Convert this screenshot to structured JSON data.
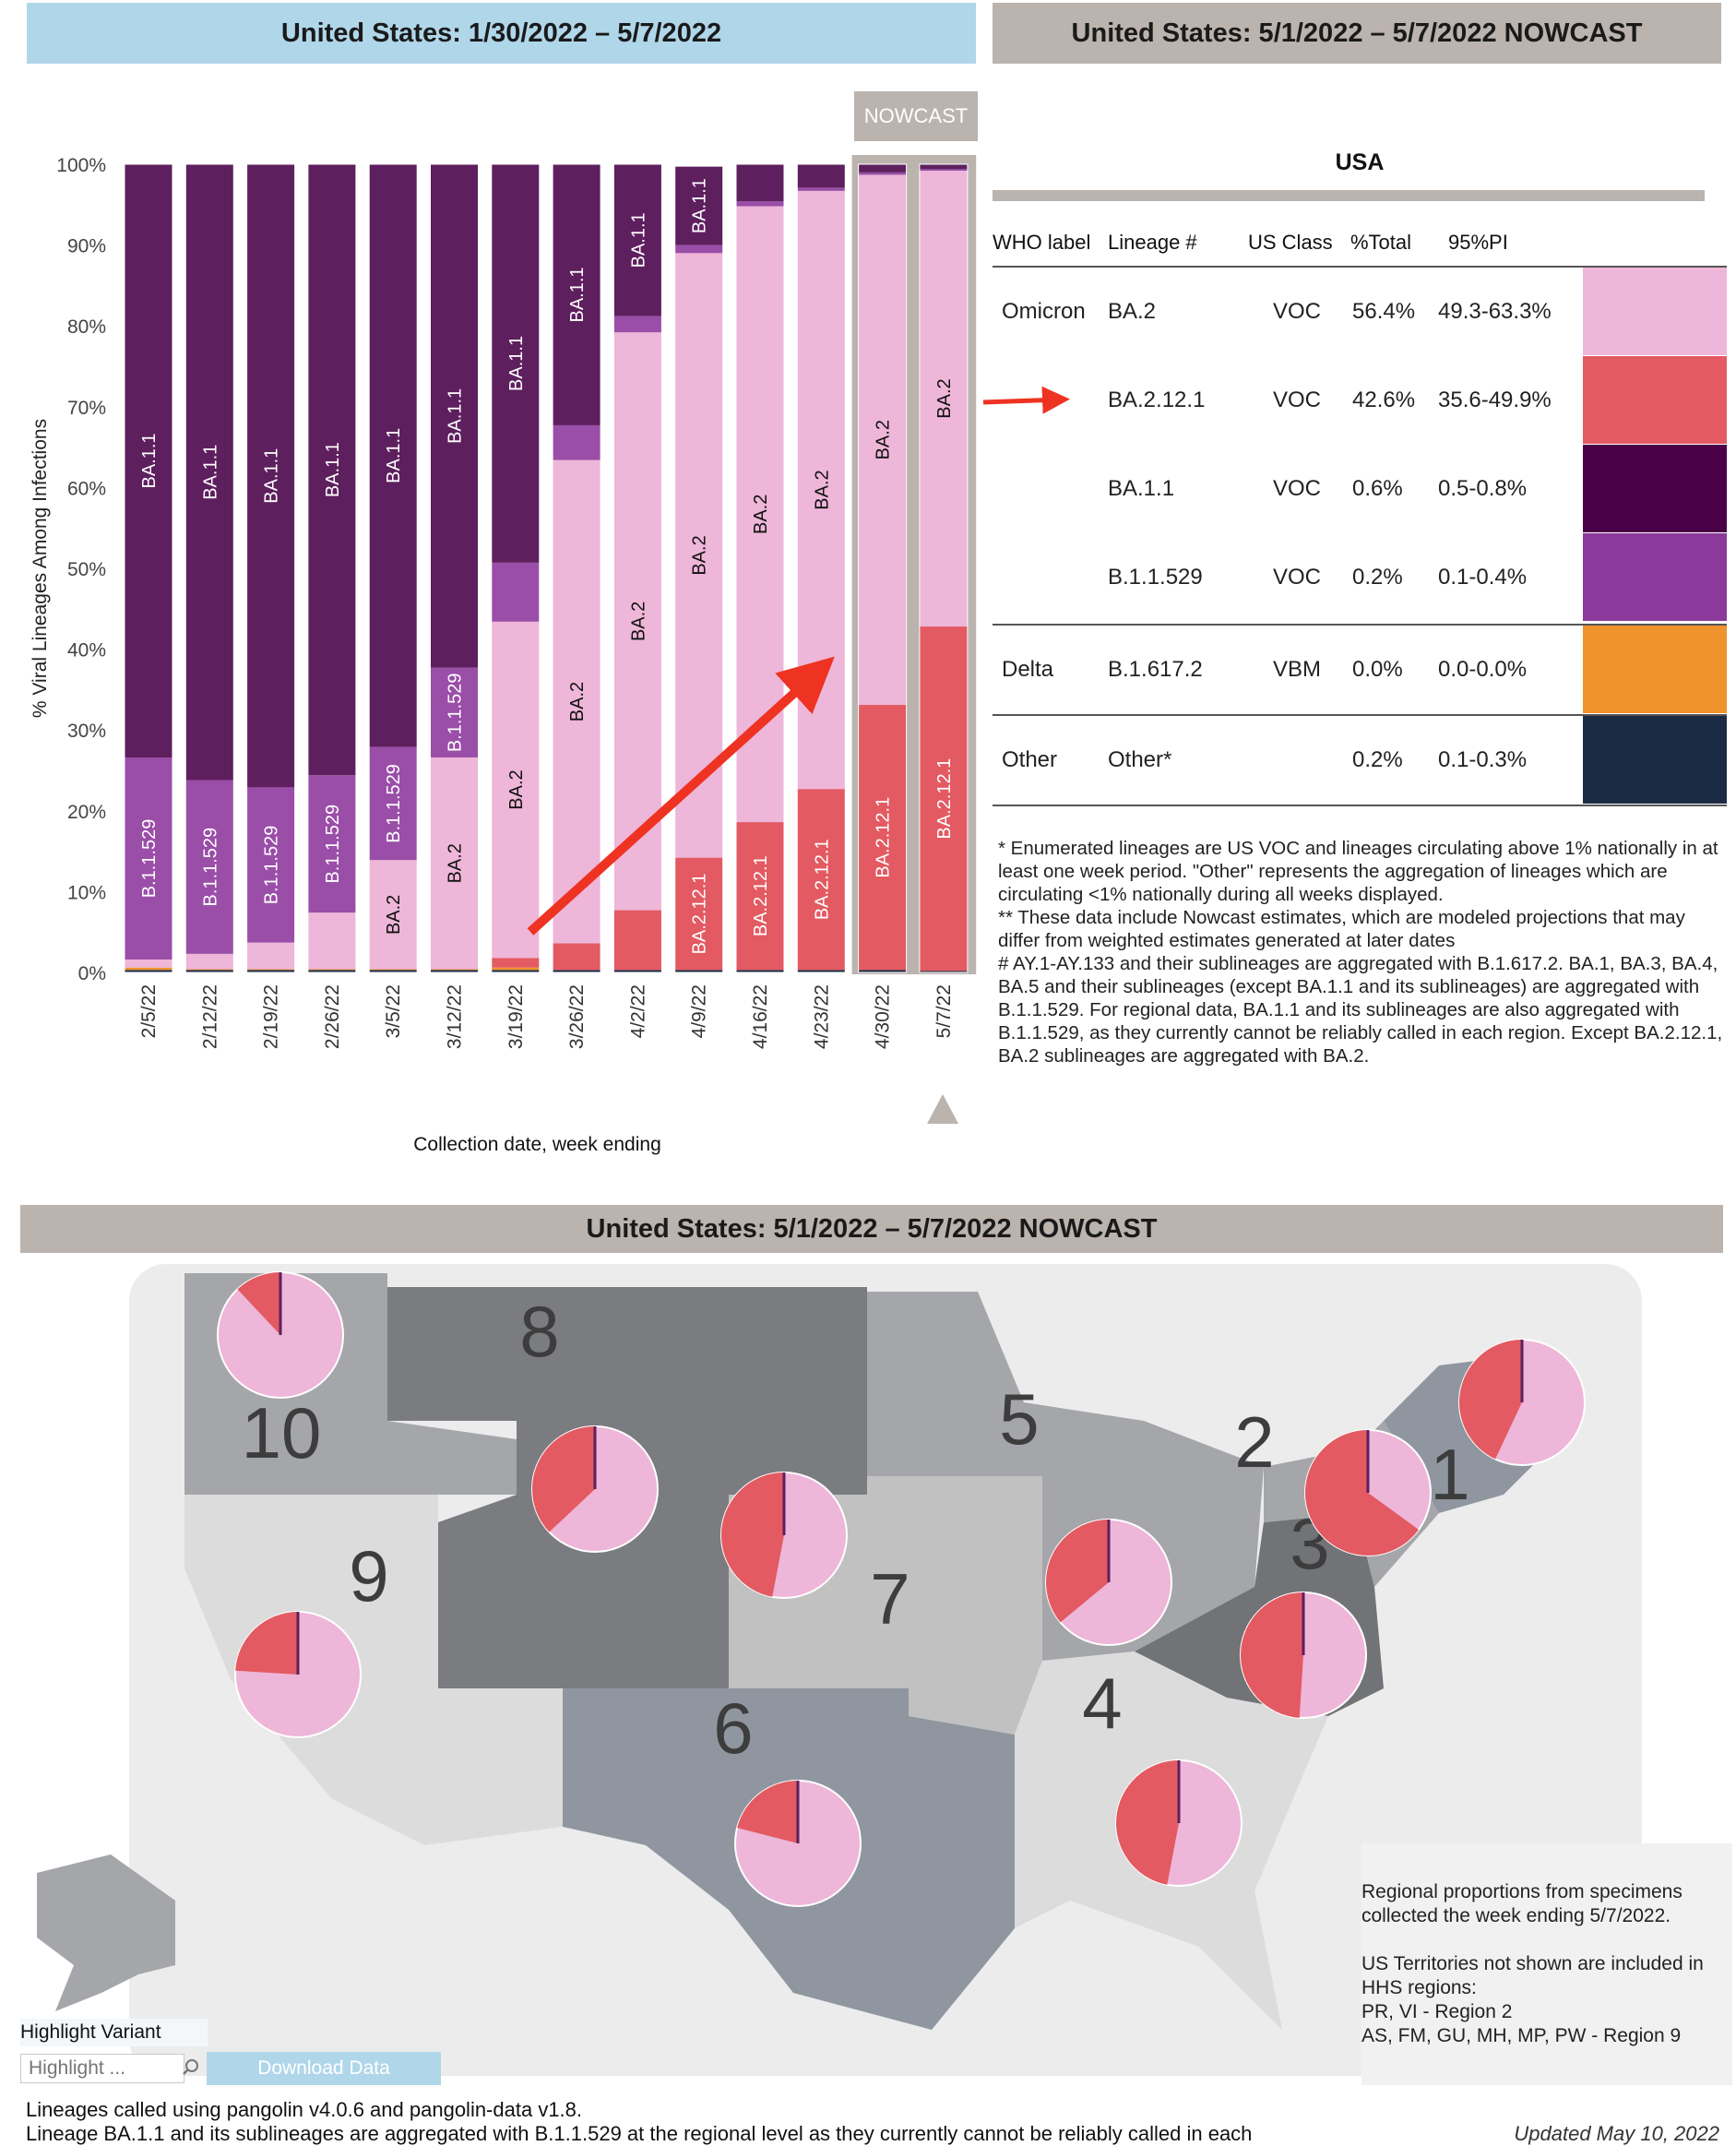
{
  "banners": {
    "left": "United States: 1/30/2022 – 5/7/2022",
    "right": "United States: 5/1/2022 – 5/7/2022 NOWCAST",
    "map": "United States: 5/1/2022 – 5/7/2022 NOWCAST"
  },
  "nowcast_tag": "NOWCAST",
  "colors": {
    "BA.2": "#eeb6d8",
    "BA.2.12.1": "#e35a62",
    "BA.1.1": "#5e1f5e",
    "B.1.1.529": "#9a4ea8",
    "B.1.617.2": "#f0922e",
    "Other": "#1c2b44",
    "table_BA.1.1": "#4a0046",
    "table_B.1.1.529": "#8b3a9c"
  },
  "chart_data": {
    "type": "bar",
    "stacked": true,
    "ylabel": "% Viral Lineages Among Infections",
    "xlabel": "Collection date, week ending",
    "ylim": [
      0,
      100
    ],
    "yticks": [
      "0%",
      "10%",
      "20%",
      "30%",
      "40%",
      "50%",
      "60%",
      "70%",
      "80%",
      "90%",
      "100%"
    ],
    "categories": [
      "2/5/22",
      "2/12/22",
      "2/19/22",
      "2/26/22",
      "3/5/22",
      "3/12/22",
      "3/19/22",
      "3/26/22",
      "4/2/22",
      "4/9/22",
      "4/16/22",
      "4/23/22",
      "4/30/22",
      "5/7/22"
    ],
    "nowcast_categories": [
      "4/30/22",
      "5/7/22"
    ],
    "series": [
      {
        "name": "Other",
        "values": [
          0.3,
          0.3,
          0.3,
          0.3,
          0.3,
          0.3,
          0.3,
          0.3,
          0.3,
          0.3,
          0.3,
          0.3,
          0.3,
          0.2
        ]
      },
      {
        "name": "B.1.617.2",
        "values": [
          0.3,
          0.1,
          0.1,
          0.1,
          0.1,
          0.1,
          0.3,
          0,
          0,
          0,
          0,
          0,
          0,
          0
        ]
      },
      {
        "name": "BA.2.12.1",
        "values": [
          0,
          0,
          0,
          0,
          0,
          0,
          1.2,
          3.3,
          7.4,
          13.9,
          18.3,
          22.4,
          32.8,
          42.6
        ]
      },
      {
        "name": "BA.2",
        "values": [
          1,
          1.9,
          3.3,
          7,
          13.5,
          26.2,
          41.6,
          59.8,
          71.5,
          74.8,
          76.2,
          74.0,
          65.6,
          56.4
        ]
      },
      {
        "name": "B.1.1.529",
        "values": [
          25,
          21.5,
          19.2,
          17,
          14,
          11.1,
          7.3,
          4.3,
          2.0,
          1.0,
          0.6,
          0.4,
          0.3,
          0.2
        ]
      },
      {
        "name": "BA.1.1",
        "values": [
          73.4,
          76.2,
          77.1,
          75.6,
          72.1,
          62.3,
          49.3,
          32.3,
          18.8,
          9.7,
          4.6,
          2.9,
          1.0,
          0.6
        ]
      }
    ],
    "bar_labels": [
      [
        {
          "s": "BA.1.1",
          "t": "BA.1.1"
        },
        {
          "s": "B.1.1.529",
          "t": "B.1.1.529"
        }
      ],
      [
        {
          "s": "BA.1.1",
          "t": "BA.1.1"
        },
        {
          "s": "B.1.1.529",
          "t": "B.1.1.529"
        }
      ],
      [
        {
          "s": "BA.1.1",
          "t": "BA.1.1"
        },
        {
          "s": "B.1.1.529",
          "t": "B.1.1.529"
        }
      ],
      [
        {
          "s": "BA.1.1",
          "t": "BA.1.1"
        },
        {
          "s": "B.1.1.529",
          "t": "B.1.1.529"
        }
      ],
      [
        {
          "s": "BA.1.1",
          "t": "BA.1.1"
        },
        {
          "s": "B.1.1.529",
          "t": "B.1.1.529"
        },
        {
          "s": "BA.2",
          "t": "BA.2"
        }
      ],
      [
        {
          "s": "BA.1.1",
          "t": "BA.1.1"
        },
        {
          "s": "B.1.1.529",
          "t": "B.1.1.529"
        },
        {
          "s": "BA.2",
          "t": "BA.2"
        }
      ],
      [
        {
          "s": "BA.1.1",
          "t": "BA.1.1"
        },
        {
          "s": "BA.2",
          "t": "BA.2"
        }
      ],
      [
        {
          "s": "BA.1.1",
          "t": "BA.1.1"
        },
        {
          "s": "BA.2",
          "t": "BA.2"
        }
      ],
      [
        {
          "s": "BA.1.1",
          "t": "BA.1.1"
        },
        {
          "s": "BA.2",
          "t": "BA.2"
        }
      ],
      [
        {
          "s": "BA.1.1",
          "t": "BA.1.1"
        },
        {
          "s": "BA.2",
          "t": "BA.2"
        },
        {
          "s": "BA.2.12.1",
          "t": "BA.2.12.1"
        }
      ],
      [
        {
          "s": "BA.2",
          "t": "BA.2"
        },
        {
          "s": "BA.2.12.1",
          "t": "BA.2.12.1"
        }
      ],
      [
        {
          "s": "BA.2",
          "t": "BA.2"
        },
        {
          "s": "BA.2.12.1",
          "t": "BA.2.12.1"
        }
      ],
      [
        {
          "s": "BA.2",
          "t": "BA.2"
        },
        {
          "s": "BA.2.12.1",
          "t": "BA.2.12.1"
        }
      ],
      [
        {
          "s": "BA.2",
          "t": "BA.2"
        },
        {
          "s": "BA.2.12.1",
          "t": "BA.2.12.1"
        }
      ]
    ]
  },
  "table": {
    "title": "USA",
    "headers": [
      "WHO label",
      "Lineage #",
      "US Class",
      "%Total",
      "95%PI"
    ],
    "rows": [
      {
        "who": "Omicron",
        "lineage": "BA.2",
        "class": "VOC",
        "total": "56.4%",
        "pi": "49.3-63.3%",
        "color": "#eeb6d8"
      },
      {
        "who": "",
        "lineage": "BA.2.12.1",
        "class": "VOC",
        "total": "42.6%",
        "pi": "35.6-49.9%",
        "color": "#e35a62"
      },
      {
        "who": "",
        "lineage": "BA.1.1",
        "class": "VOC",
        "total": "0.6%",
        "pi": "0.5-0.8%",
        "color": "#4a0046"
      },
      {
        "who": "",
        "lineage": "B.1.1.529",
        "class": "VOC",
        "total": "0.2%",
        "pi": "0.1-0.4%",
        "color": "#8b3a9c"
      },
      {
        "who": "Delta",
        "lineage": "B.1.617.2",
        "class": "VBM",
        "total": "0.0%",
        "pi": "0.0-0.0%",
        "color": "#f0922e"
      },
      {
        "who": "Other",
        "lineage": "Other*",
        "class": "",
        "total": "0.2%",
        "pi": "0.1-0.3%",
        "color": "#1c2b44"
      }
    ]
  },
  "footnotes": {
    "star": "*      Enumerated lineages are US VOC and lineages circulating above 1% nationally in at least one week period. \"Other\" represents the aggregation of lineages which are circulating <1% nationally during all weeks displayed.",
    "dstar": "**      These data include Nowcast estimates, which are modeled projections that may differ from weighted estimates generated at later dates",
    "hash": "#      AY.1-AY.133 and their sublineages are aggregated with B.1.617.2. BA.1, BA.3, BA.4, BA.5 and their sublineages (except BA.1.1 and its sublineages) are aggregated with B.1.1.529. For regional data, BA.1.1 and its sublineages are also aggregated with B.1.1.529, as they currently cannot be reliably called in each region. Except BA.2.12.1, BA.2 sublineages are aggregated with BA.2."
  },
  "map": {
    "regions": [
      {
        "label": "1",
        "ba2": 57,
        "ba2121": 43
      },
      {
        "label": "2",
        "ba2": 35,
        "ba2121": 65
      },
      {
        "label": "3",
        "ba2": 51,
        "ba2121": 49
      },
      {
        "label": "4",
        "ba2": 53,
        "ba2121": 47
      },
      {
        "label": "5",
        "ba2": 64,
        "ba2121": 36
      },
      {
        "label": "6",
        "ba2": 79,
        "ba2121": 21
      },
      {
        "label": "7",
        "ba2": 53,
        "ba2121": 47
      },
      {
        "label": "8",
        "ba2": 63,
        "ba2121": 37
      },
      {
        "label": "9",
        "ba2": 76,
        "ba2121": 24
      },
      {
        "label": "10",
        "ba2": 88,
        "ba2121": 12
      }
    ],
    "note_line1": "Regional proportions from specimens collected the week ending 5/7/2022.",
    "note_line2": "US Territories not shown are included in HHS regions:",
    "note_line3": "PR, VI - Region 2",
    "note_line4": "AS, FM, GU, MH, MP, PW - Region 9"
  },
  "controls": {
    "highlight_label": "Highlight Variant",
    "highlight_placeholder": "Highlight ...",
    "download_label": "Download Data"
  },
  "bottom": {
    "pangolin": "Lineages called using pangolin v4.0.6 and pangolin-data v1.8.",
    "lineage_note": "Lineage BA.1.1 and its sublineages are aggregated with B.1.1.529 at the regional level as they currently cannot be reliably called in each",
    "updated": "Updated May 10, 2022"
  }
}
